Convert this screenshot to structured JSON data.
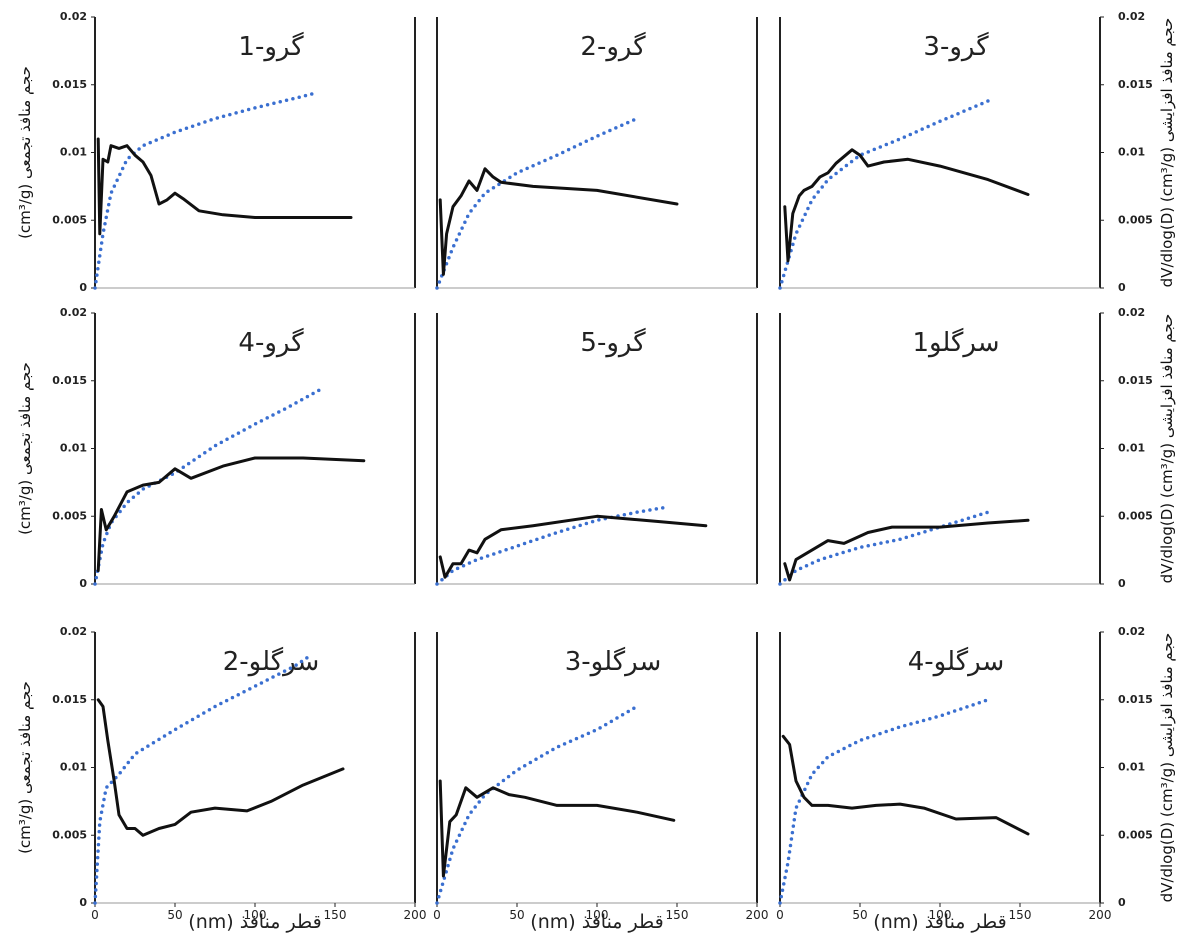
{
  "chart_data": [
    {
      "type": "line",
      "title": "گرو-1",
      "ylabel": "حجم منافذ تجمعی (cm³/g)",
      "xlim": [
        0,
        200
      ],
      "ylim": [
        0,
        0.02
      ],
      "yticks": [
        0,
        0.005,
        0.01,
        0.015,
        0.02
      ],
      "series": [
        {
          "color": "#3a6fd0",
          "style": "dotted",
          "x": [
            0,
            5,
            10,
            20,
            30,
            50,
            75,
            100,
            125,
            138
          ],
          "values": [
            0,
            0.004,
            0.007,
            0.0095,
            0.0105,
            0.0115,
            0.0125,
            0.0133,
            0.014,
            0.0144
          ]
        },
        {
          "color": "#111111",
          "style": "solid",
          "x": [
            2,
            3,
            5,
            8,
            10,
            15,
            20,
            25,
            30,
            35,
            40,
            45,
            50,
            55,
            65,
            80,
            100,
            120,
            160
          ],
          "values": [
            0.011,
            0.004,
            0.0095,
            0.0093,
            0.0105,
            0.0103,
            0.0105,
            0.0098,
            0.0093,
            0.0083,
            0.0062,
            0.0065,
            0.007,
            0.0066,
            0.0057,
            0.0054,
            0.0052,
            0.0052,
            0.0052
          ]
        }
      ]
    },
    {
      "type": "line",
      "title": "گرو-2",
      "xlim": [
        0,
        200
      ],
      "ylim": [
        0,
        0.02
      ],
      "series": [
        {
          "color": "#3a6fd0",
          "style": "dotted",
          "x": [
            0,
            10,
            20,
            30,
            50,
            75,
            100,
            125
          ],
          "values": [
            0,
            0.003,
            0.0055,
            0.007,
            0.0085,
            0.0098,
            0.0112,
            0.0125
          ]
        },
        {
          "color": "#111111",
          "style": "solid",
          "x": [
            2,
            4,
            6,
            10,
            15,
            20,
            25,
            30,
            35,
            40,
            60,
            100,
            150
          ],
          "values": [
            0.0065,
            0.001,
            0.004,
            0.006,
            0.0068,
            0.0079,
            0.0072,
            0.0088,
            0.0082,
            0.0078,
            0.0075,
            0.0072,
            0.0062
          ]
        }
      ]
    },
    {
      "type": "line",
      "title": "گرو-3",
      "y2label": "حجم منافذ افزایشی dV/dlog(D) (cm³/g)",
      "xlim": [
        0,
        200
      ],
      "ylim": [
        0,
        0.02
      ],
      "y2lim": [
        0,
        0.02
      ],
      "y2ticks": [
        0,
        0.005,
        0.01,
        0.015,
        0.02
      ],
      "series": [
        {
          "color": "#3a6fd0",
          "style": "dotted",
          "x": [
            0,
            5,
            10,
            20,
            30,
            50,
            75,
            100,
            130
          ],
          "values": [
            0,
            0.002,
            0.004,
            0.0065,
            0.008,
            0.0098,
            0.011,
            0.0123,
            0.0138
          ]
        },
        {
          "color": "#111111",
          "style": "solid",
          "axis": "y2",
          "x": [
            3,
            5,
            8,
            12,
            15,
            20,
            25,
            30,
            35,
            45,
            50,
            55,
            65,
            80,
            100,
            130,
            155
          ],
          "values": [
            0.006,
            0.002,
            0.0055,
            0.0068,
            0.0072,
            0.0075,
            0.0082,
            0.0085,
            0.0092,
            0.0102,
            0.0098,
            0.009,
            0.0093,
            0.0095,
            0.009,
            0.008,
            0.0069
          ]
        }
      ]
    },
    {
      "type": "line",
      "title": "گرو-4",
      "ylabel": "حجم منافذ تجمعی (cm³/g)",
      "xlim": [
        0,
        200
      ],
      "ylim": [
        0,
        0.02
      ],
      "yticks": [
        0,
        0.005,
        0.01,
        0.015,
        0.02
      ],
      "series": [
        {
          "color": "#3a6fd0",
          "style": "dotted",
          "x": [
            0,
            5,
            10,
            20,
            30,
            50,
            75,
            100,
            120,
            140
          ],
          "values": [
            0,
            0.003,
            0.0045,
            0.006,
            0.007,
            0.0082,
            0.0102,
            0.0118,
            0.013,
            0.0143
          ]
        },
        {
          "color": "#111111",
          "style": "solid",
          "x": [
            2,
            4,
            7,
            12,
            20,
            30,
            40,
            50,
            60,
            80,
            100,
            130,
            168
          ],
          "values": [
            0.001,
            0.0055,
            0.004,
            0.005,
            0.0068,
            0.0073,
            0.0075,
            0.0085,
            0.0078,
            0.0087,
            0.0093,
            0.0093,
            0.0091
          ]
        }
      ]
    },
    {
      "type": "line",
      "title": "گرو-5",
      "xlim": [
        0,
        200
      ],
      "ylim": [
        0,
        0.02
      ],
      "series": [
        {
          "color": "#3a6fd0",
          "style": "dotted",
          "x": [
            0,
            10,
            25,
            50,
            75,
            100,
            125,
            145
          ],
          "values": [
            0,
            0.001,
            0.0018,
            0.0028,
            0.0038,
            0.0047,
            0.0053,
            0.0057
          ]
        },
        {
          "color": "#111111",
          "style": "solid",
          "x": [
            2,
            5,
            10,
            15,
            20,
            25,
            30,
            40,
            60,
            100,
            140,
            168
          ],
          "values": [
            0.002,
            0.0005,
            0.0015,
            0.0015,
            0.0025,
            0.0023,
            0.0033,
            0.004,
            0.0043,
            0.005,
            0.0046,
            0.0043
          ]
        }
      ]
    },
    {
      "type": "line",
      "title": "سرگلو1",
      "y2label": "حجم منافذ افزایشی dV/dlog(D) (cm³/g)",
      "xlim": [
        0,
        200
      ],
      "ylim": [
        0,
        0.02
      ],
      "y2lim": [
        0,
        0.02
      ],
      "y2ticks": [
        0,
        0.005,
        0.01,
        0.015,
        0.02
      ],
      "series": [
        {
          "color": "#3a6fd0",
          "style": "dotted",
          "x": [
            0,
            10,
            25,
            50,
            75,
            100,
            130
          ],
          "values": [
            0,
            0.001,
            0.0018,
            0.0027,
            0.0033,
            0.0042,
            0.0053
          ]
        },
        {
          "color": "#111111",
          "style": "solid",
          "axis": "y2",
          "x": [
            3,
            6,
            10,
            20,
            30,
            40,
            55,
            70,
            100,
            130,
            155
          ],
          "values": [
            0.0015,
            0.0003,
            0.0018,
            0.0025,
            0.0032,
            0.003,
            0.0038,
            0.0042,
            0.0042,
            0.0045,
            0.0047
          ]
        }
      ]
    },
    {
      "type": "line",
      "title": "سرگلو-2",
      "ylabel": "حجم منافذ تجمعی (cm³/g)",
      "xlabel": "قطر منافذ (nm)",
      "xlim": [
        0,
        200
      ],
      "xticks": [
        0,
        50,
        100,
        150,
        200
      ],
      "ylim": [
        0,
        0.02
      ],
      "yticks": [
        0,
        0.005,
        0.01,
        0.015,
        0.02
      ],
      "series": [
        {
          "color": "#3a6fd0",
          "style": "dotted",
          "x": [
            0,
            3,
            7,
            15,
            25,
            50,
            75,
            100,
            125,
            135
          ],
          "values": [
            0,
            0.006,
            0.0085,
            0.0095,
            0.011,
            0.0128,
            0.0145,
            0.016,
            0.0175,
            0.0183
          ]
        },
        {
          "color": "#111111",
          "style": "solid",
          "x": [
            2,
            5,
            8,
            12,
            15,
            20,
            25,
            30,
            40,
            50,
            60,
            75,
            95,
            110,
            130,
            155
          ],
          "values": [
            0.015,
            0.0145,
            0.012,
            0.009,
            0.0065,
            0.0055,
            0.0055,
            0.005,
            0.0055,
            0.0058,
            0.0067,
            0.007,
            0.0068,
            0.0075,
            0.0087,
            0.0099
          ]
        }
      ]
    },
    {
      "type": "line",
      "title": "سرگلو-3",
      "xlabel": "قطر منافذ (nm)",
      "xlim": [
        0,
        200
      ],
      "xticks": [
        0,
        50,
        100,
        150,
        200
      ],
      "ylim": [
        0,
        0.02
      ],
      "series": [
        {
          "color": "#3a6fd0",
          "style": "dotted",
          "x": [
            0,
            10,
            20,
            30,
            50,
            75,
            100,
            125
          ],
          "values": [
            0,
            0.004,
            0.0065,
            0.008,
            0.0098,
            0.0115,
            0.0128,
            0.0145
          ]
        },
        {
          "color": "#111111",
          "style": "solid",
          "x": [
            2,
            4,
            8,
            12,
            18,
            25,
            35,
            45,
            55,
            75,
            100,
            125,
            148
          ],
          "values": [
            0.009,
            0.002,
            0.006,
            0.0065,
            0.0085,
            0.0078,
            0.0085,
            0.008,
            0.0078,
            0.0072,
            0.0072,
            0.0067,
            0.0061
          ]
        }
      ]
    },
    {
      "type": "line",
      "title": "سرگلو-4",
      "y2label": "حجم منافذ افزایشی dV/dlog(D) (cm³/g)",
      "xlabel": "قطر منافذ (nm)",
      "xlim": [
        0,
        200
      ],
      "xticks": [
        0,
        50,
        100,
        150,
        200
      ],
      "ylim": [
        0,
        0.02
      ],
      "y2lim": [
        0,
        0.02
      ],
      "y2ticks": [
        0,
        0.005,
        0.01,
        0.015,
        0.02
      ],
      "series": [
        {
          "color": "#3a6fd0",
          "style": "dotted",
          "x": [
            0,
            5,
            10,
            20,
            30,
            50,
            75,
            100,
            130
          ],
          "values": [
            0,
            0.003,
            0.007,
            0.0095,
            0.0108,
            0.012,
            0.013,
            0.0138,
            0.015
          ]
        },
        {
          "color": "#111111",
          "style": "solid",
          "axis": "y2",
          "x": [
            2,
            6,
            10,
            15,
            20,
            30,
            45,
            60,
            75,
            90,
            110,
            135,
            155
          ],
          "values": [
            0.0123,
            0.0117,
            0.009,
            0.0078,
            0.0072,
            0.0072,
            0.007,
            0.0072,
            0.0073,
            0.007,
            0.0062,
            0.0063,
            0.0051
          ]
        }
      ]
    }
  ]
}
